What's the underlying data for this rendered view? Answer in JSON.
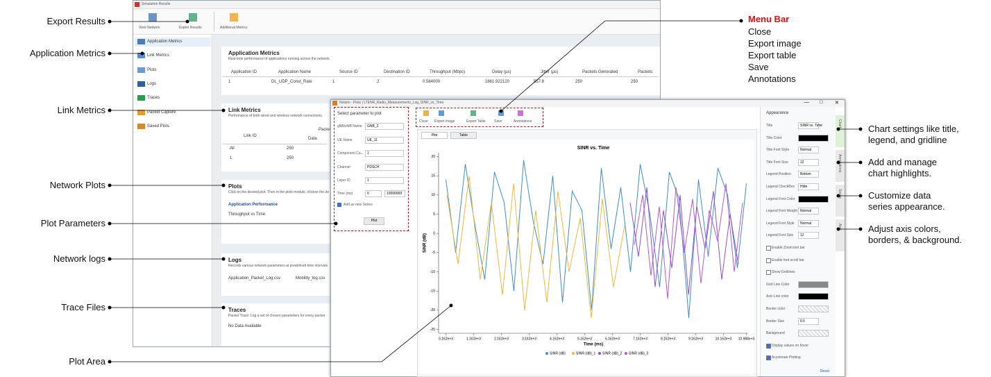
{
  "callouts": {
    "left": [
      "Export Results",
      "Application Metrics",
      "Link Metrics",
      "Network Plots",
      "Plot Parameters",
      "Network logs",
      "Trace Files",
      "Plot Area"
    ],
    "menu_bar": {
      "title": "Menu Bar",
      "items": [
        "Close",
        "Export image",
        "Export table",
        "Save",
        "Annotations"
      ]
    },
    "right": [
      [
        "Chart settings like title,",
        "legend, and gridline"
      ],
      [
        "Add and manage",
        "chart highlights."
      ],
      [
        "Customize data",
        "series appearance."
      ],
      [
        "Adjust axis colors,",
        "borders, & background."
      ]
    ]
  },
  "results_window": {
    "title": "Simulation Results",
    "toolbar": [
      "View Network",
      "Export Results",
      "Additional Metrics"
    ],
    "sidebar": [
      "Application Metrics",
      "Link Metrics",
      "Plots",
      "Logs",
      "Traces",
      "Packet Capture",
      "Saved Plots"
    ],
    "application_metrics": {
      "title": "Application Metrics",
      "description": "Real-time performance of applications running across the network.",
      "headers": [
        "Application ID",
        "Application Name",
        "Source ID",
        "Destination ID",
        "Throughput (Mbps)",
        "Delay (µs)",
        "Jitter (µs)",
        "Packets Generated",
        "Packets"
      ],
      "rows": [
        [
          "1",
          "DL_UDP_Const_Rate",
          "1",
          "2",
          "0.584000",
          "1661.922120",
          "557.8",
          "250",
          "250"
        ]
      ]
    },
    "link_metrics": {
      "title": "Link Metrics",
      "description": "Performance of both wired and wireless network connections.",
      "headers": [
        "Link ID",
        "Packets",
        "Data"
      ],
      "rows": [
        [
          "All",
          "250"
        ],
        [
          "1",
          "250"
        ]
      ]
    },
    "plots": {
      "title": "Plots",
      "description": "Click on the desired plot. Then in the plots module, choose the de",
      "group": "Application Performance",
      "items": [
        "Throughput vs Time"
      ]
    },
    "logs": {
      "title": "Logs",
      "description": "Records various network parameters at predefined time intervals",
      "items": [
        "Application_Packet_Log.csv",
        "Mobility_log.csv"
      ]
    },
    "traces": {
      "title": "Traces",
      "description": "Packet Trace: Log a set of chosen parameters for every packet",
      "items": [
        "No Data Available"
      ]
    }
  },
  "plot_window": {
    "title": "Netsim - Plots | LTENR_Radio_Measurements_Log_SINR_vs_Time",
    "parameters": {
      "title": "Select parameter to plot",
      "fields": [
        [
          "gNB/eNB Name",
          "GNB_2"
        ],
        [
          "UE Name",
          "UE_11"
        ],
        [
          "Component Ca...",
          "1"
        ],
        [
          "Channel",
          "PDSCH"
        ],
        [
          "Layer ID",
          "1"
        ]
      ],
      "time_label": "Time (ms)",
      "time_from": "0",
      "time_to": "10000000",
      "checkbox": "Add as new Series",
      "button": "Plot"
    },
    "toolbar": [
      "Close",
      "Export image",
      "Export Table",
      "Save",
      "Annotations"
    ],
    "tabs": [
      "Plot",
      "Table"
    ],
    "plot": {
      "type": "line",
      "title": "SINR vs. Time",
      "x_label": "Time (ms)",
      "y_label": "SINR (dB)",
      "xlim": [
        -100,
        11050
      ],
      "ylim": [
        -26,
        21
      ],
      "xticks": [
        {
          "value": 162,
          "label": "0.162e+3"
        },
        {
          "value": 1162,
          "label": "1.162e+3"
        },
        {
          "value": 2162,
          "label": "2.162e+3"
        },
        {
          "value": 3162,
          "label": "3.162e+3"
        },
        {
          "value": 4162,
          "label": "4.162e+3"
        },
        {
          "value": 5162,
          "label": "5.162e+3"
        },
        {
          "value": 6162,
          "label": "6.162e+3"
        },
        {
          "value": 7162,
          "label": "7.162e+3"
        },
        {
          "value": 8162,
          "label": "8.162e+3"
        },
        {
          "value": 9162,
          "label": "9.162e+3"
        },
        {
          "value": 10162,
          "label": "10.162e+3"
        },
        {
          "value": 10988,
          "label": "10.988e+3"
        }
      ],
      "yticks": [
        20,
        15,
        10,
        5,
        0,
        -5,
        -10,
        -15,
        -20,
        -25
      ],
      "series": [
        {
          "name": "SINR (dB)",
          "color": "#3a8fcb",
          "x": [
            162,
            512,
            862,
            1212,
            1562,
            1912,
            2262,
            2612,
            2962,
            3312,
            3662,
            4012,
            4362,
            4712,
            5062,
            5412,
            5762,
            6112,
            6462,
            6812,
            7162,
            7512,
            7862,
            8212,
            8562,
            8912,
            9262,
            9612,
            9962,
            10312,
            10662,
            10988
          ],
          "values": [
            14,
            -5,
            18,
            2,
            -12,
            16,
            8,
            -15,
            19,
            3,
            -8,
            15,
            -18,
            11,
            6,
            -20,
            17,
            -4,
            12,
            -10,
            18,
            5,
            -14,
            16,
            9,
            -22,
            14,
            -6,
            17,
            10,
            -9,
            13
          ]
        },
        {
          "name": "SINR (dB)_1",
          "color": "#f0b83c",
          "x": [
            200,
            600,
            1000,
            1400,
            1800,
            2200,
            2600,
            3000,
            3400,
            3800,
            4200,
            4600,
            5000,
            5400,
            5800,
            6200,
            6600
          ],
          "values": [
            10,
            -8,
            15,
            -12,
            8,
            -16,
            13,
            -20,
            6,
            -18,
            11,
            -10,
            4,
            -22,
            9,
            -14,
            2
          ]
        },
        {
          "name": "SINR (dB)_2",
          "color": "#8a4fd8",
          "x": [
            6800,
            7100,
            7400,
            7700,
            8000,
            8300,
            8600,
            8900,
            9200,
            9500,
            9800,
            10100,
            10400,
            10700
          ],
          "values": [
            8,
            -6,
            12,
            -14,
            6,
            -9,
            10,
            -16,
            7,
            -4,
            11,
            -12,
            5,
            -8
          ]
        },
        {
          "name": "SINR (dB)_3",
          "color": "#b25ad6",
          "x": [
            6950,
            7250,
            7550,
            7850,
            8150,
            8450,
            8750,
            9050,
            9350,
            9650,
            9950,
            10250,
            10550,
            10850
          ],
          "values": [
            -3,
            10,
            -11,
            7,
            -17,
            12,
            -5,
            9,
            -13,
            6,
            -2,
            13,
            -10,
            8
          ]
        }
      ]
    },
    "appearance": {
      "title": "Appearance",
      "rows": [
        [
          "Title",
          "SINR vs. Time"
        ],
        [
          "Title Color",
          ""
        ],
        [
          "Title Font Style",
          "Normal"
        ],
        [
          "Title Font Size",
          "12"
        ],
        [
          "Legend Position",
          "Bottom"
        ],
        [
          "Legend CheckBox",
          "Hide"
        ],
        [
          "Legend Font Color",
          ""
        ],
        [
          "Legend Font Weight",
          "Normal"
        ],
        [
          "Legend Font Style",
          "Normal"
        ],
        [
          "Legend Font Size",
          "12"
        ]
      ],
      "checks": [
        "Enable Zoom tool bar",
        "Enable font scroll bar",
        "Show Gridlines"
      ],
      "rows2": [
        [
          "Grid Line Color",
          ""
        ],
        [
          "Axis Line color",
          ""
        ],
        [
          "Border color",
          ""
        ],
        [
          "Border Size",
          "0.5"
        ],
        [
          "Background",
          ""
        ]
      ],
      "checks2": [
        "Display values on hover",
        "Accelerate Plotting"
      ],
      "reset": "Reset"
    },
    "side_tabs": [
      "Chart",
      "Annotations",
      "Series",
      "Axis"
    ]
  }
}
